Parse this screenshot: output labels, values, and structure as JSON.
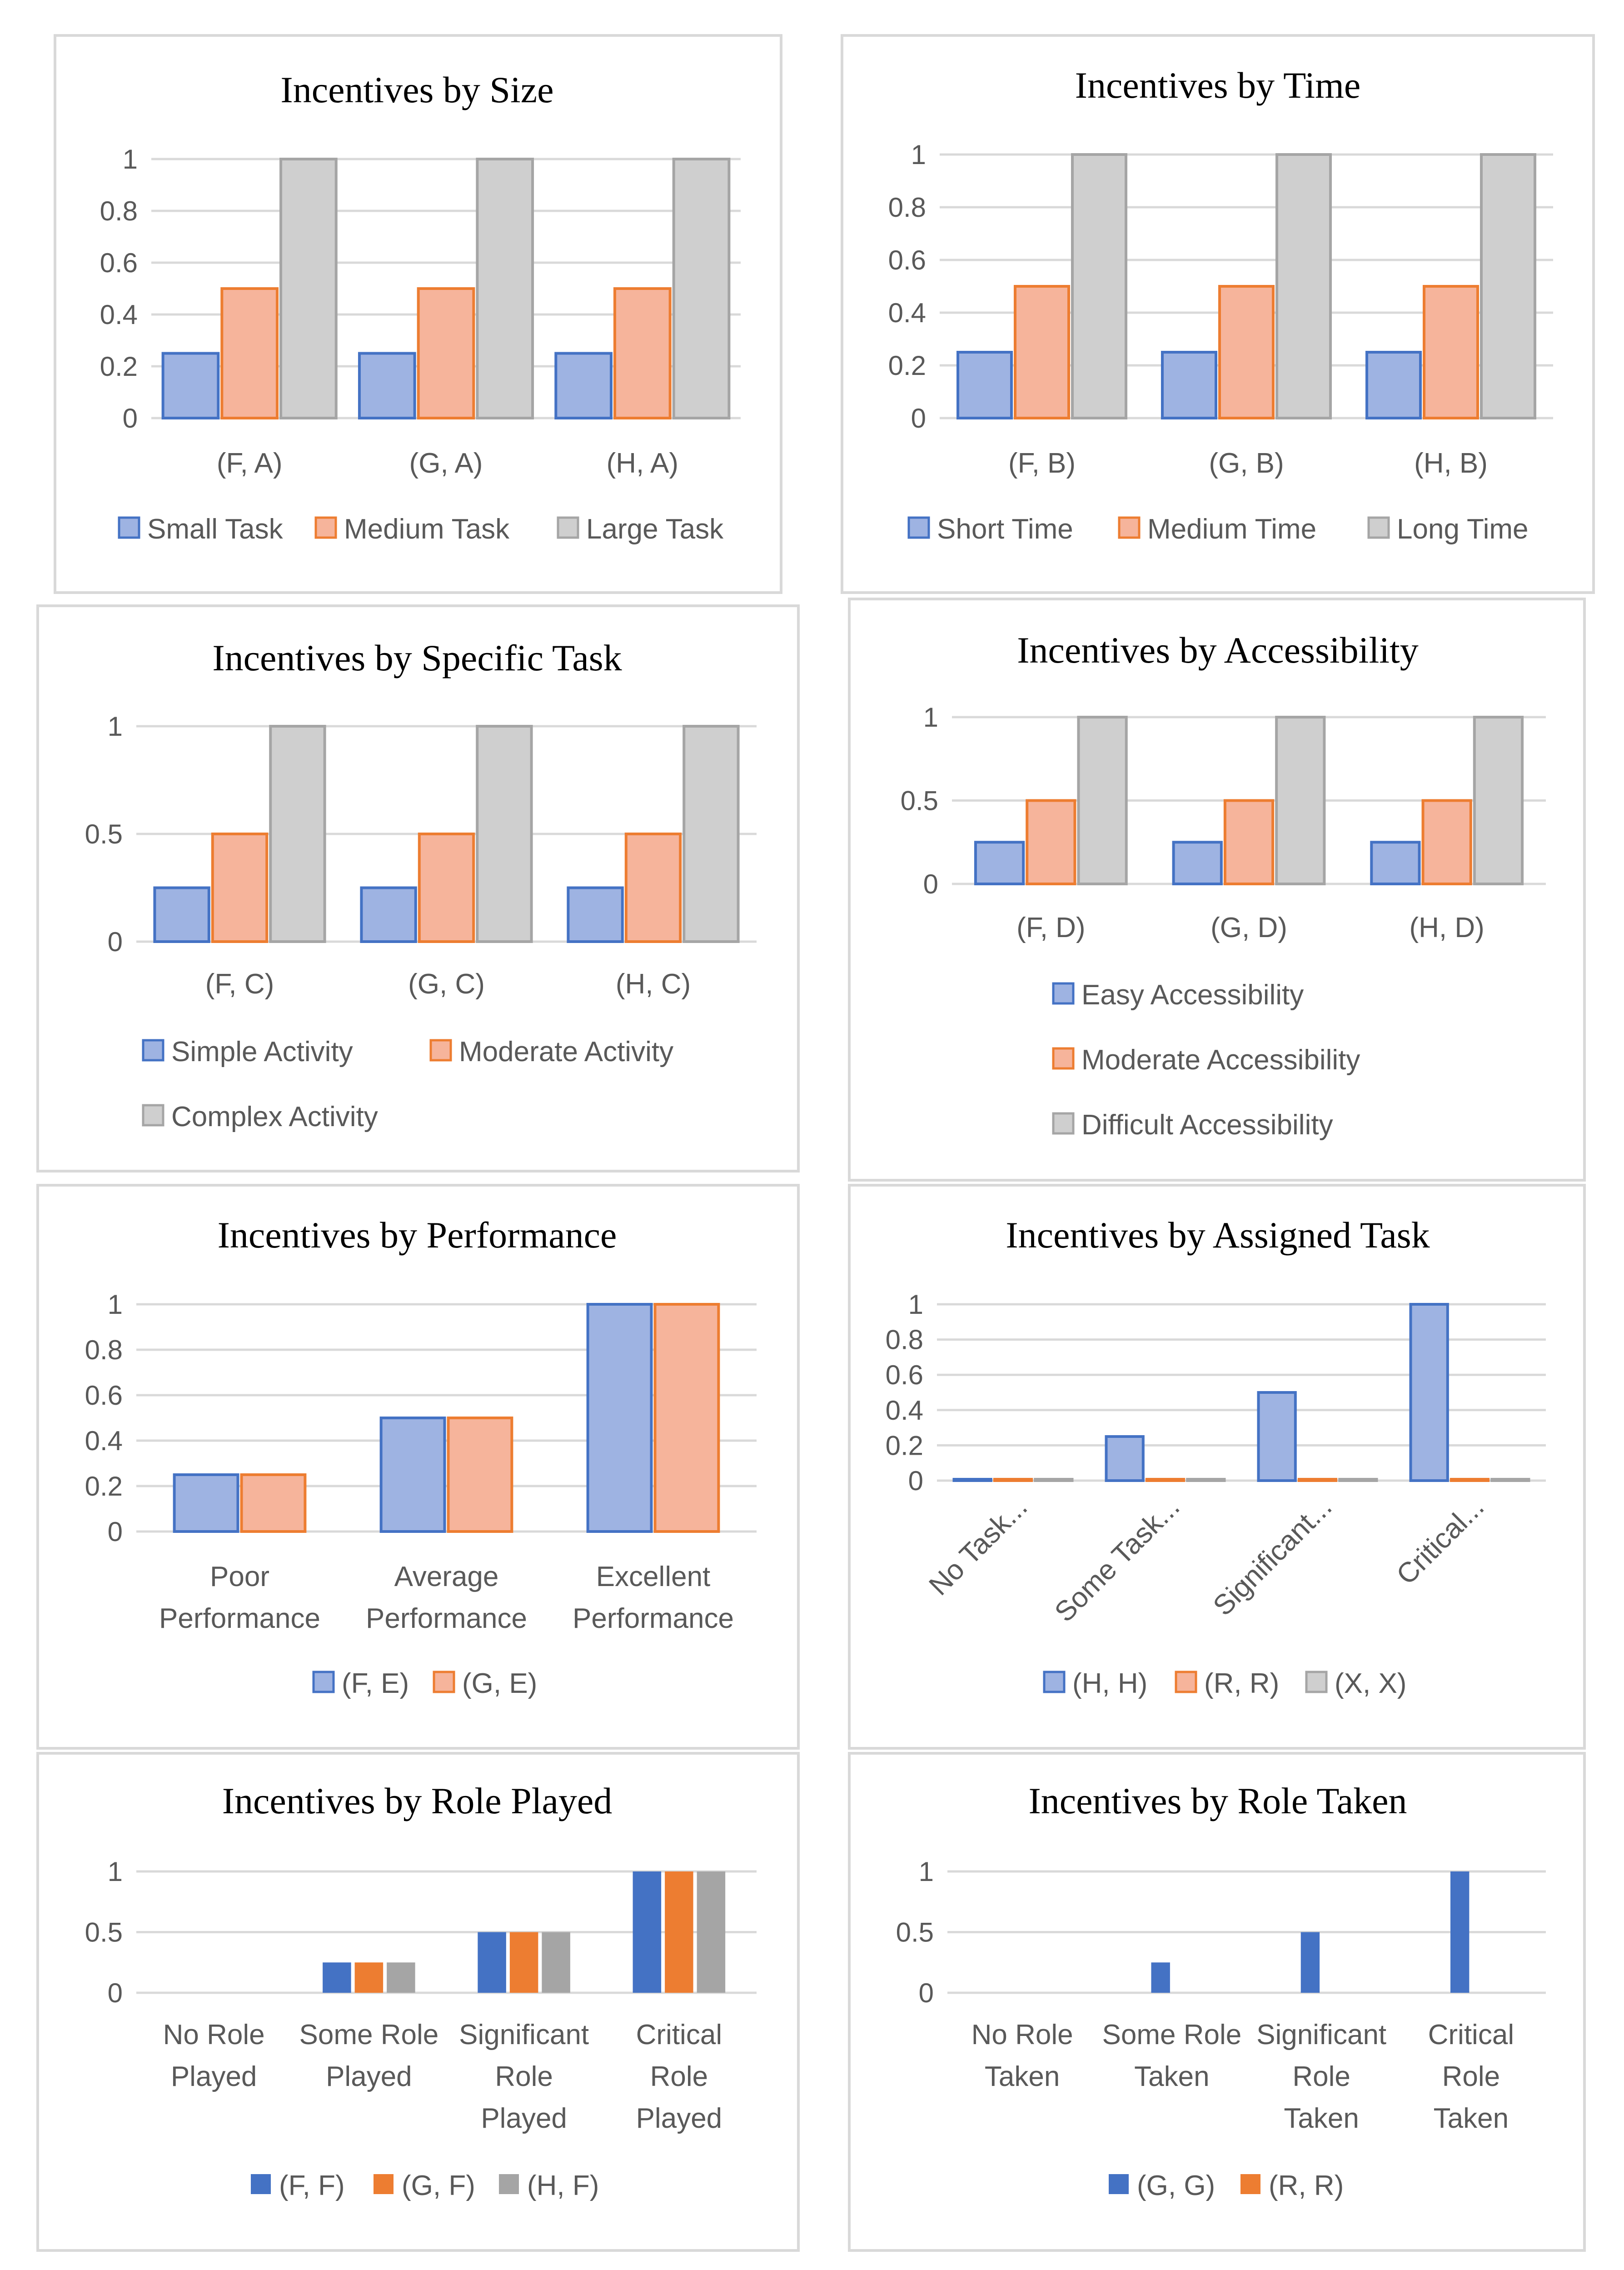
{
  "colors": {
    "blue_fill": "#9eb3e2",
    "blue_edge": "#4472c4",
    "orange_fill": "#f6b49b",
    "orange_edge": "#ed7d31",
    "gray_fill": "#cfcfcf",
    "gray_edge": "#a5a5a5",
    "blue_solid": "#4472c4",
    "orange_solid": "#ed7d31",
    "gray_solid": "#a5a5a5"
  },
  "chart_data": [
    {
      "id": "size",
      "type": "bar",
      "title": "Incentives by Size",
      "categories": [
        "(F, A)",
        "(G, A)",
        "(H, A)"
      ],
      "series": [
        {
          "name": "Small Task",
          "values": [
            0.25,
            0.25,
            0.25
          ]
        },
        {
          "name": "Medium Task",
          "values": [
            0.5,
            0.5,
            0.5
          ]
        },
        {
          "name": "Large Task",
          "values": [
            1,
            1,
            1
          ]
        }
      ],
      "yticks": [
        "0",
        "0.2",
        "0.4",
        "0.6",
        "0.8",
        "1"
      ],
      "ylim": [
        0,
        1
      ],
      "xlabel": "",
      "ylabel": "",
      "legend": "bottom"
    },
    {
      "id": "time",
      "type": "bar",
      "title": "Incentives by Time",
      "categories": [
        "(F, B)",
        "(G, B)",
        "(H, B)"
      ],
      "series": [
        {
          "name": "Short Time",
          "values": [
            0.25,
            0.25,
            0.25
          ]
        },
        {
          "name": "Medium Time",
          "values": [
            0.5,
            0.5,
            0.5
          ]
        },
        {
          "name": "Long Time",
          "values": [
            1,
            1,
            1
          ]
        }
      ],
      "yticks": [
        "0",
        "0.2",
        "0.4",
        "0.6",
        "0.8",
        "1"
      ],
      "ylim": [
        0,
        1
      ],
      "xlabel": "",
      "ylabel": "",
      "legend": "bottom"
    },
    {
      "id": "specific",
      "type": "bar",
      "title": "Incentives by Specific Task",
      "categories": [
        "(F, C)",
        "(G, C)",
        "(H, C)"
      ],
      "series": [
        {
          "name": "Simple Activity",
          "values": [
            0.25,
            0.25,
            0.25
          ]
        },
        {
          "name": "Moderate Activity",
          "values": [
            0.5,
            0.5,
            0.5
          ]
        },
        {
          "name": "Complex Activity",
          "values": [
            1,
            1,
            1
          ]
        }
      ],
      "yticks": [
        "0",
        "0.5",
        "1"
      ],
      "ylim": [
        0,
        1
      ],
      "xlabel": "",
      "ylabel": "",
      "legend": "bottom"
    },
    {
      "id": "accessibility",
      "type": "bar",
      "title": "Incentives by Accessibility",
      "categories": [
        "(F, D)",
        "(G, D)",
        "(H, D)"
      ],
      "series": [
        {
          "name": "Easy Accessibility",
          "values": [
            0.25,
            0.25,
            0.25
          ]
        },
        {
          "name": "Moderate Accessibility",
          "values": [
            0.5,
            0.5,
            0.5
          ]
        },
        {
          "name": "Difficult Accessibility",
          "values": [
            1,
            1,
            1
          ]
        }
      ],
      "yticks": [
        "0",
        "0.5",
        "1"
      ],
      "ylim": [
        0,
        1
      ],
      "xlabel": "",
      "ylabel": "",
      "legend": "bottom"
    },
    {
      "id": "performance",
      "type": "bar",
      "title": "Incentives by Performance",
      "categories": [
        [
          "Poor",
          "Performance"
        ],
        [
          "Average",
          "Performance"
        ],
        [
          "Excellent",
          "Performance"
        ]
      ],
      "series": [
        {
          "name": "(F, E)",
          "values": [
            0.25,
            0.5,
            1
          ]
        },
        {
          "name": "(G, E)",
          "values": [
            0.25,
            0.5,
            1
          ]
        }
      ],
      "yticks": [
        "0",
        "0.2",
        "0.4",
        "0.6",
        "0.8",
        "1"
      ],
      "ylim": [
        0,
        1
      ],
      "xlabel": "",
      "ylabel": "",
      "legend": "bottom"
    },
    {
      "id": "assigned",
      "type": "bar",
      "title": "Incentives by Assigned Task",
      "categories": [
        "No Task...",
        "Some Task...",
        "Significant...",
        "Critical..."
      ],
      "series": [
        {
          "name": "(H, H)",
          "values": [
            0,
            0.25,
            0.5,
            1
          ]
        },
        {
          "name": "(R, R)",
          "values": [
            0,
            0,
            0,
            0
          ]
        },
        {
          "name": "(X, X)",
          "values": [
            0,
            0,
            0,
            0
          ]
        }
      ],
      "yticks": [
        "0",
        "0.2",
        "0.4",
        "0.6",
        "0.8",
        "1"
      ],
      "ylim": [
        0,
        1
      ],
      "xlabel": "",
      "ylabel": "",
      "legend": "bottom"
    },
    {
      "id": "roleplayed",
      "type": "bar",
      "title": "Incentives by Role Played",
      "categories": [
        [
          "No Role",
          "Played"
        ],
        [
          "Some Role",
          "Played"
        ],
        [
          "Significant",
          "Role",
          "Played"
        ],
        [
          "Critical",
          "Role",
          "Played"
        ]
      ],
      "series": [
        {
          "name": "(F, F)",
          "values": [
            0,
            0.25,
            0.5,
            1
          ]
        },
        {
          "name": "(G, F)",
          "values": [
            0,
            0.25,
            0.5,
            1
          ]
        },
        {
          "name": "(H, F)",
          "values": [
            0,
            0.25,
            0.5,
            1
          ]
        }
      ],
      "yticks": [
        "0",
        "0.5",
        "1"
      ],
      "ylim": [
        0,
        1
      ],
      "xlabel": "",
      "ylabel": "",
      "legend": "bottom"
    },
    {
      "id": "roletaken",
      "type": "bar",
      "title": "Incentives by Role Taken",
      "categories": [
        [
          "No Role",
          "Taken"
        ],
        [
          "Some Role",
          "Taken"
        ],
        [
          "Significant",
          "Role",
          "Taken"
        ],
        [
          "Critical",
          "Role",
          "Taken"
        ]
      ],
      "series": [
        {
          "name": "(G, G)",
          "values": [
            0,
            0.25,
            0.5,
            1
          ]
        },
        {
          "name": "(R, R)",
          "values": [
            0,
            0,
            0,
            0
          ]
        }
      ],
      "yticks": [
        "0",
        "0.5",
        "1"
      ],
      "ylim": [
        0,
        1
      ],
      "xlabel": "",
      "ylabel": "",
      "legend": "bottom"
    }
  ]
}
